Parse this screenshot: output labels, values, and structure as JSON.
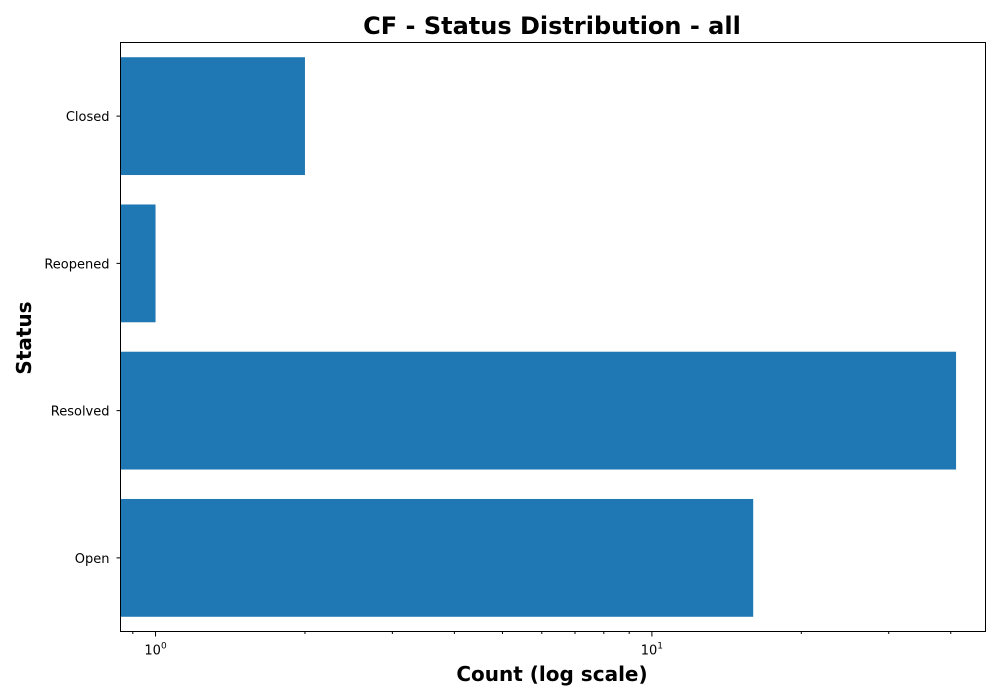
{
  "chart_data": {
    "type": "bar",
    "orientation": "horizontal",
    "title": "CF - Status Distribution - all",
    "xlabel": "Count (log scale)",
    "ylabel": "Status",
    "xscale": "log",
    "xlim": [
      0.85,
      47
    ],
    "categories": [
      "Open",
      "Resolved",
      "Reopened",
      "Closed"
    ],
    "values": [
      16,
      41,
      1,
      2
    ],
    "bar_color": "#1f77b4",
    "major_ticks": [
      {
        "value": 1,
        "base": "10",
        "exp": "0"
      },
      {
        "value": 10,
        "base": "10",
        "exp": "1"
      }
    ],
    "grid": false,
    "legend": "none"
  }
}
